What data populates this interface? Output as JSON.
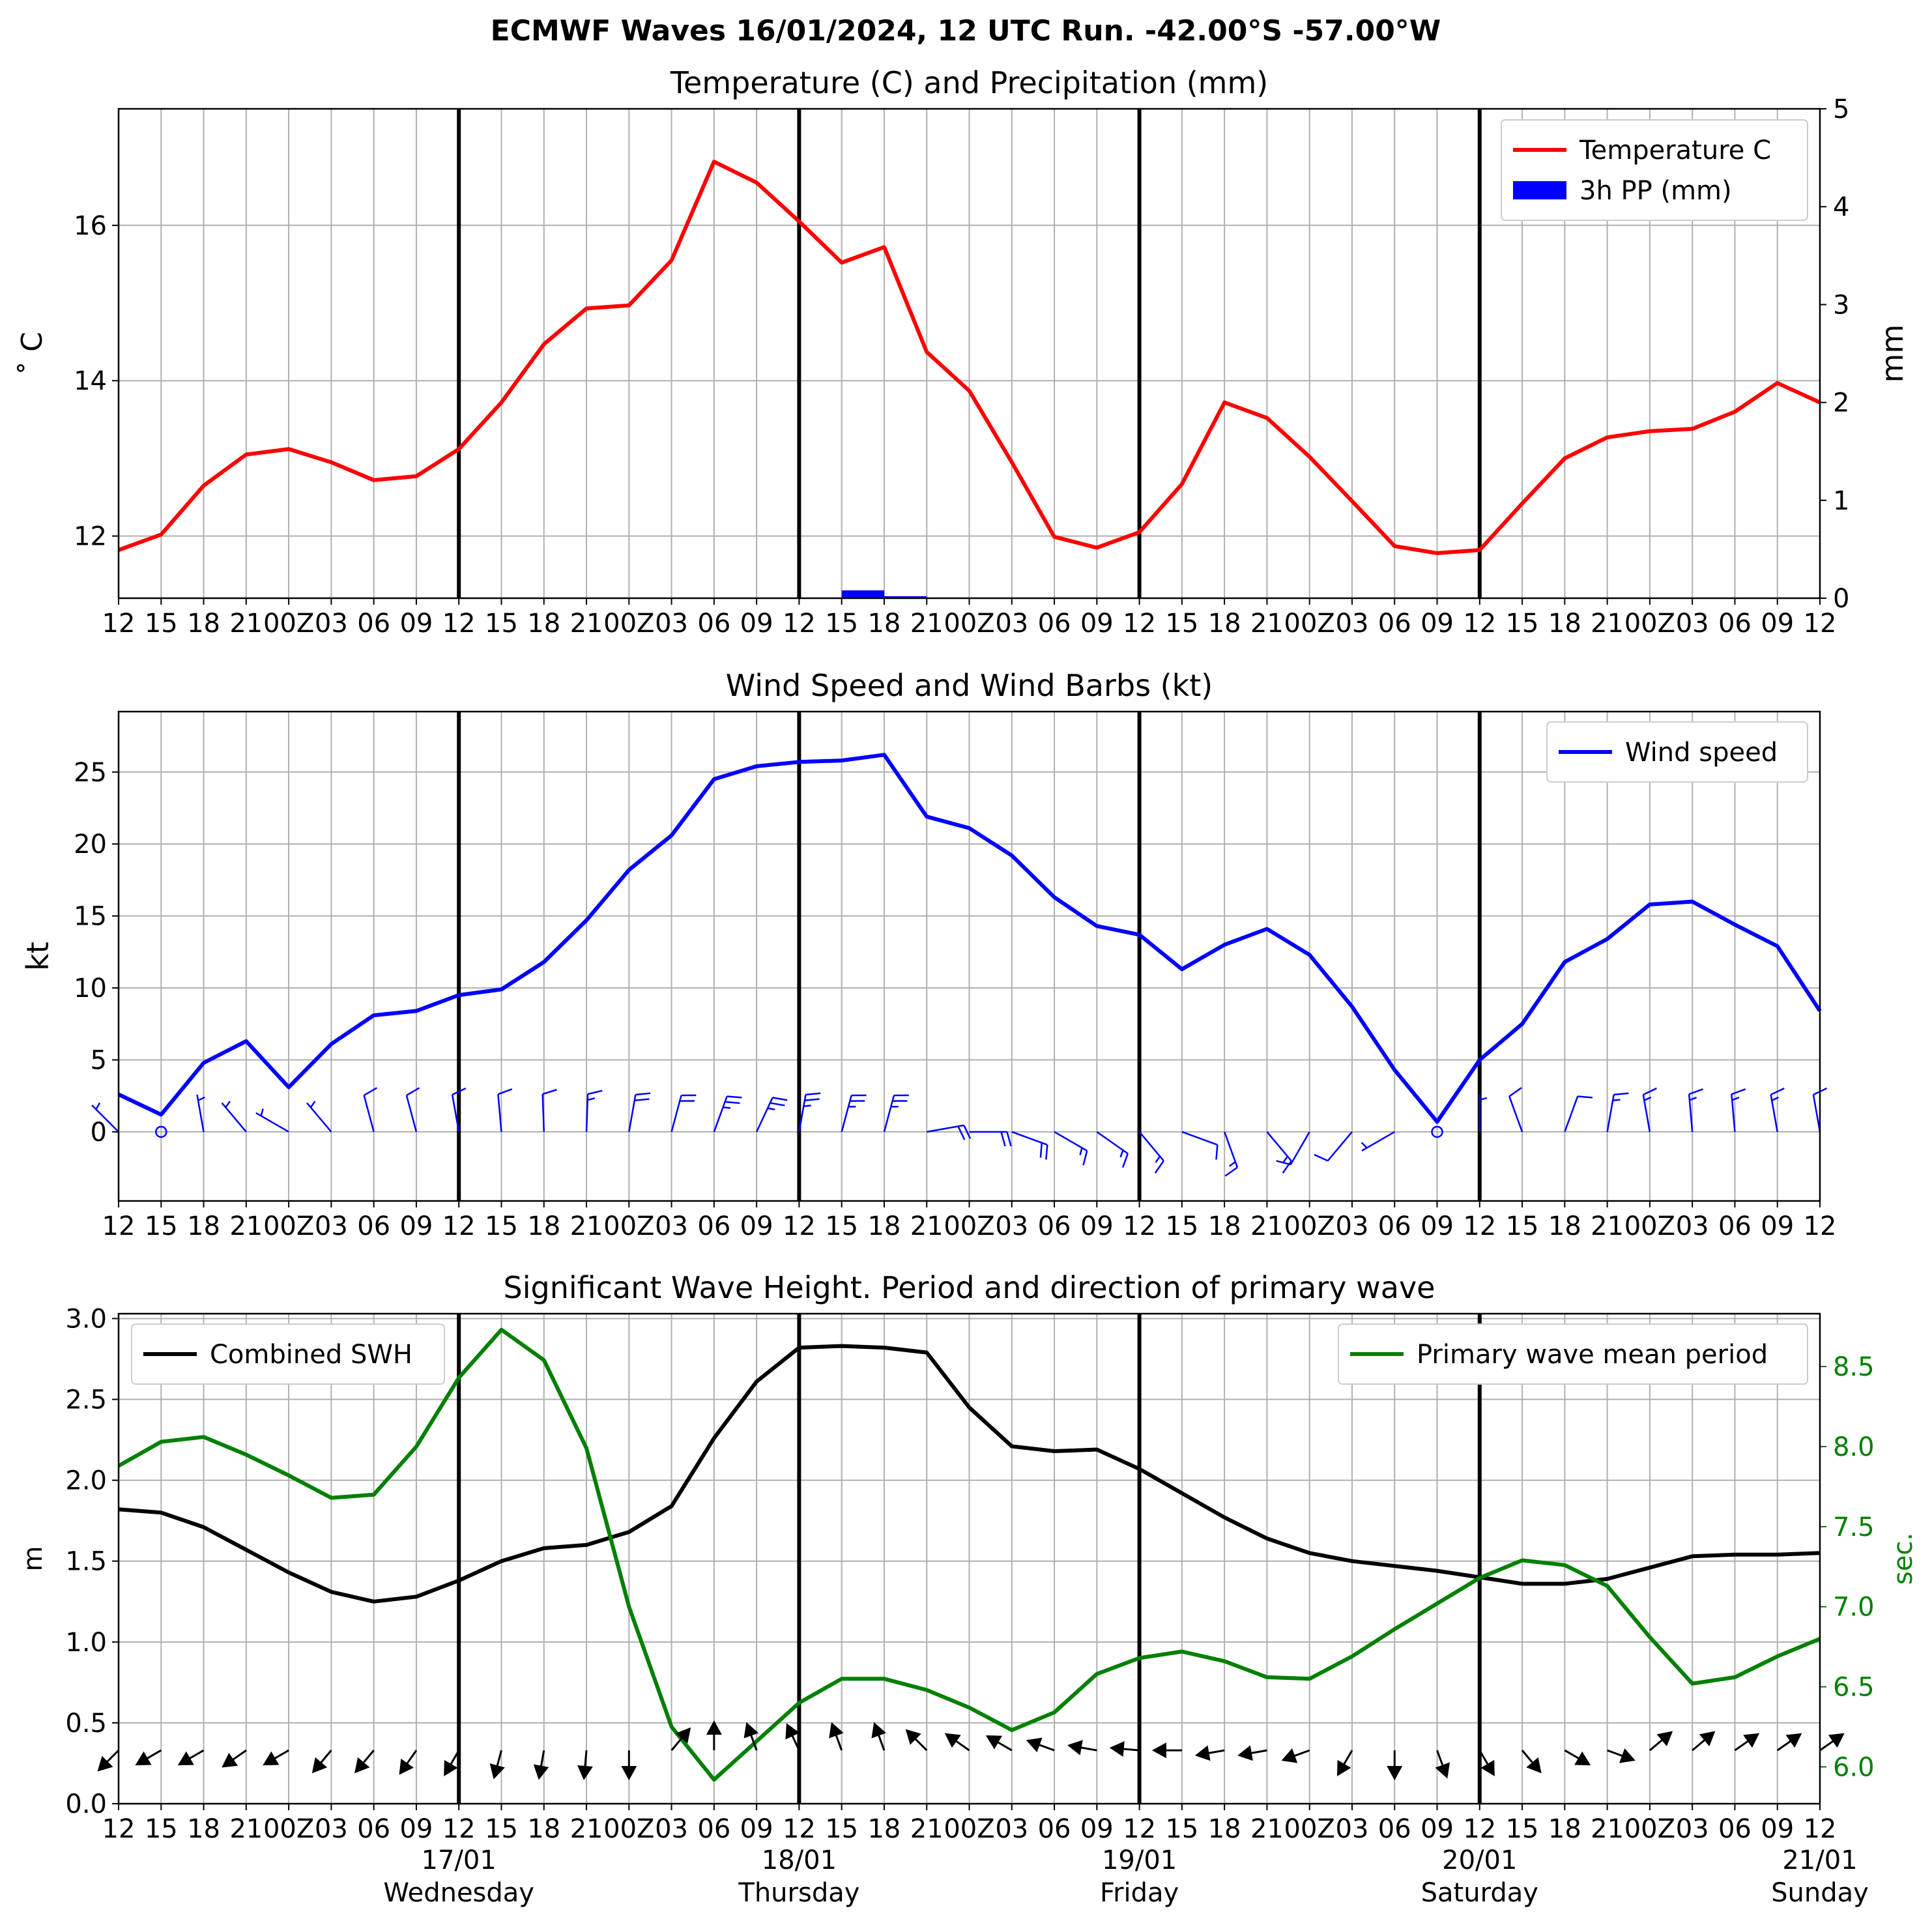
{
  "page": {
    "title": "ECMWF Waves 16/01/2024, 12 UTC Run. -42.00°S -57.00°W"
  },
  "chart_data": [
    {
      "type": "line",
      "title": "Temperature (C) and Precipitation (mm)",
      "ylabel": "$^\\circ$ C",
      "ylabel_display": "˚ C",
      "y2label": "mm",
      "ylim": [
        11.2,
        17.5
      ],
      "y2lim": [
        0,
        5
      ],
      "yticks": [
        12,
        14,
        16
      ],
      "y2ticks": [
        0,
        1,
        2,
        3,
        4,
        5
      ],
      "legend": "top-right",
      "x_hours": [
        0,
        3,
        6,
        9,
        12,
        15,
        18,
        21,
        24,
        27,
        30,
        33,
        36,
        39,
        42,
        45,
        48,
        51,
        54,
        57,
        60,
        63,
        66,
        69,
        72,
        75,
        78,
        81,
        84,
        87,
        90,
        93,
        96,
        99,
        102,
        105,
        108,
        111,
        114,
        117,
        120
      ],
      "series": [
        {
          "name": "Temperature C",
          "color": "#ff0000",
          "values": [
            11.82,
            12.02,
            12.65,
            13.05,
            13.12,
            12.95,
            12.72,
            12.77,
            13.12,
            13.72,
            14.47,
            14.93,
            14.97,
            15.55,
            16.82,
            16.55,
            16.05,
            15.52,
            15.72,
            14.37,
            13.87,
            12.95,
            11.99,
            11.85,
            12.05,
            12.67,
            13.72,
            13.52,
            13.02,
            12.45,
            11.87,
            11.78,
            11.82,
            12.42,
            13.0,
            13.27,
            13.35,
            13.38,
            13.6,
            13.97,
            13.72
          ]
        },
        {
          "name": "3h PP (mm)",
          "color": "#0000ff",
          "type": "bar",
          "bars": [
            {
              "x": 52.5,
              "value": 0.08
            },
            {
              "x": 55.5,
              "value": 0.02
            }
          ]
        }
      ]
    },
    {
      "type": "line",
      "title": "Wind Speed and Wind Barbs (kt)",
      "ylabel": "kt",
      "ylim": [
        -4.8,
        29.2
      ],
      "yticks": [
        0,
        5,
        10,
        15,
        20,
        25
      ],
      "legend": "top-right",
      "x_hours": [
        0,
        3,
        6,
        9,
        12,
        15,
        18,
        21,
        24,
        27,
        30,
        33,
        36,
        39,
        42,
        45,
        48,
        51,
        54,
        57,
        60,
        63,
        66,
        69,
        72,
        75,
        78,
        81,
        84,
        87,
        90,
        93,
        96,
        99,
        102,
        105,
        108,
        111,
        114,
        117,
        120
      ],
      "series": [
        {
          "name": "Wind speed",
          "color": "#0000ff",
          "values": [
            2.6,
            1.2,
            4.8,
            6.3,
            3.1,
            6.1,
            8.1,
            8.4,
            9.5,
            9.9,
            11.8,
            14.7,
            18.2,
            20.6,
            24.5,
            25.4,
            25.7,
            25.8,
            26.2,
            21.9,
            21.1,
            19.2,
            16.3,
            14.3,
            13.7,
            11.3,
            13.0,
            14.1,
            12.3,
            8.7,
            4.3,
            0.7,
            5.0,
            7.5,
            11.8,
            13.4,
            15.8,
            16.0,
            14.4,
            12.9,
            8.4
          ]
        }
      ],
      "wind_barbs": {
        "color": "#0000ff",
        "direction_deg": [
          315,
          0,
          350,
          320,
          300,
          320,
          345,
          345,
          350,
          355,
          358,
          2,
          10,
          15,
          20,
          25,
          10,
          15,
          15,
          80,
          90,
          110,
          120,
          125,
          140,
          110,
          160,
          140,
          210,
          220,
          240,
          270,
          0,
          340,
          20,
          10,
          350,
          355,
          355,
          350,
          350
        ]
      }
    },
    {
      "type": "line",
      "title": "Significant Wave Height. Period and direction of primary wave",
      "ylabel": "m",
      "y2label": "sec.",
      "ylim": [
        0,
        3.03
      ],
      "y2lim": [
        5.77,
        8.83
      ],
      "yticks": [
        0.0,
        0.5,
        1.0,
        1.5,
        2.0,
        2.5,
        3.0
      ],
      "y2ticks": [
        6.0,
        6.5,
        7.0,
        7.5,
        8.0,
        8.5
      ],
      "x_hours": [
        0,
        3,
        6,
        9,
        12,
        15,
        18,
        21,
        24,
        27,
        30,
        33,
        36,
        39,
        42,
        45,
        48,
        51,
        54,
        57,
        60,
        63,
        66,
        69,
        72,
        75,
        78,
        81,
        84,
        87,
        90,
        93,
        96,
        99,
        102,
        105,
        108,
        111,
        114,
        117,
        120
      ],
      "series": [
        {
          "name": "Combined SWH",
          "color": "#000000",
          "legend": "top-left",
          "values": [
            1.82,
            1.8,
            1.71,
            1.57,
            1.43,
            1.31,
            1.25,
            1.28,
            1.38,
            1.5,
            1.58,
            1.6,
            1.68,
            1.84,
            2.26,
            2.61,
            2.82,
            2.83,
            2.82,
            2.79,
            2.45,
            2.21,
            2.18,
            2.19,
            2.07,
            1.92,
            1.77,
            1.64,
            1.55,
            1.5,
            1.47,
            1.44,
            1.4,
            1.36,
            1.36,
            1.39,
            1.46,
            1.53,
            1.54,
            1.54,
            1.55
          ]
        },
        {
          "name": "Primary wave mean period",
          "color": "#008000",
          "axis": "right",
          "legend": "top-right",
          "values": [
            7.88,
            8.03,
            8.06,
            7.95,
            7.82,
            7.68,
            7.7,
            8.0,
            8.43,
            8.73,
            8.54,
            7.99,
            7.0,
            6.25,
            5.92,
            6.16,
            6.4,
            6.55,
            6.55,
            6.48,
            6.37,
            6.23,
            6.34,
            6.58,
            6.68,
            6.72,
            6.66,
            6.56,
            6.55,
            6.69,
            6.86,
            7.02,
            7.18,
            7.29,
            7.26,
            7.13,
            6.81,
            6.52,
            6.56,
            6.69,
            6.8
          ]
        }
      ],
      "wave_arrows": {
        "color": "#000000",
        "direction_deg": [
          45,
          60,
          60,
          55,
          60,
          40,
          40,
          35,
          30,
          15,
          10,
          5,
          0,
          220,
          180,
          160,
          155,
          160,
          160,
          135,
          125,
          120,
          110,
          100,
          95,
          90,
          80,
          80,
          70,
          30,
          0,
          340,
          330,
          320,
          300,
          290,
          230,
          230,
          235,
          235,
          235
        ]
      }
    }
  ],
  "axes": {
    "tick_labels": [
      "12",
      "15",
      "18",
      "21",
      "00Z",
      "03",
      "06",
      "09",
      "12",
      "15",
      "18",
      "21",
      "00Z",
      "03",
      "06",
      "09",
      "12",
      "15",
      "18",
      "21",
      "00Z",
      "03",
      "06",
      "09",
      "12",
      "15",
      "18",
      "21",
      "00Z",
      "03",
      "06",
      "09",
      "12",
      "15",
      "18",
      "21",
      "00Z",
      "03",
      "06",
      "09",
      "12"
    ],
    "day_labels": [
      {
        "date": "17/01",
        "day": "Wednesday"
      },
      {
        "date": "18/01",
        "day": "Thursday"
      },
      {
        "date": "19/01",
        "day": "Friday"
      },
      {
        "date": "20/01",
        "day": "Saturday"
      },
      {
        "date": "21/01",
        "day": "Sunday"
      }
    ]
  }
}
